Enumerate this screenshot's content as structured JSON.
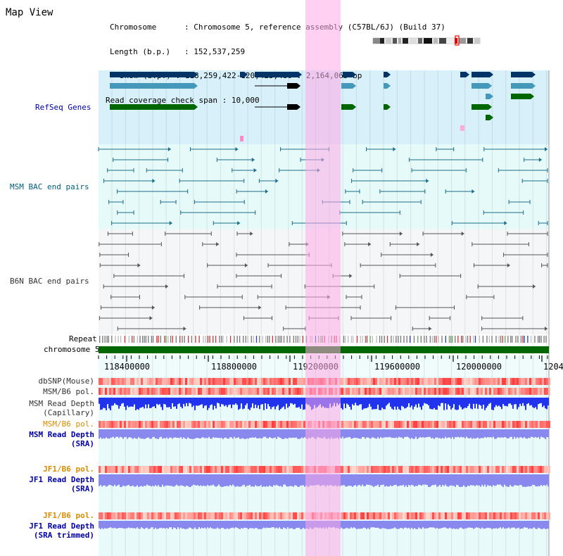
{
  "title": "Map View",
  "info": {
    "chromosome_key": "Chromosome",
    "chromosome_val": "Chromosome 5, reference assembly (C57BL/6J) (Build 37)",
    "length_key": "Length (b.p.)",
    "length_val": "152,537,259",
    "show_key": "Show (b.p.)",
    "show_val": "118,259,422-120,423,486 : 2,164,065 bp",
    "span_key": "Read coverage check span",
    "span_val": "10,000"
  },
  "tracks": {
    "refseq": "RefSeq Genes",
    "msm_bac": "MSM BAC end pairs",
    "b6n_bac": "B6N BAC end pairs",
    "repeat": "Repeat",
    "chromosome": "chromosome 5",
    "dbsnp": "dbSNP(Mouse)",
    "msm_b6_pol_1": "MSM/B6 pol.",
    "msm_read_depth_cap_1": "MSM Read Depth",
    "msm_read_depth_cap_2": "(Capillary)",
    "msm_b6_pol_2": "MSM/B6 pol.",
    "msm_read_depth_sra_1": "MSM Read Depth",
    "msm_read_depth_sra_2": "(SRA)",
    "jf1_b6_pol_1": "JF1/B6 pol.",
    "jf1_read_depth_sra_1": "JF1 Read Depth",
    "jf1_read_depth_sra_2": "(SRA)",
    "jf1_b6_pol_2": "JF1/B6 pol.",
    "jf1_read_depth_trim_1": "JF1 Read Depth",
    "jf1_read_depth_trim_2": "(SRA trimmed)"
  },
  "axis_ticks": [
    "118400000",
    "118800000",
    "119200000",
    "119600000",
    "120000000",
    "1204"
  ],
  "colors": {
    "refseq_bg": "#d8f0fa",
    "bac_bg": "#e6fafa",
    "b6n_bg": "#f4f6f8",
    "highlight": "#ffaae6",
    "gene_dark": "#003366",
    "gene_light": "#4499bb",
    "gene_green": "#006600",
    "chromosome_bar": "#006600",
    "read_depth_blue": "#2233ee",
    "read_depth_light": "#8888ee"
  }
}
